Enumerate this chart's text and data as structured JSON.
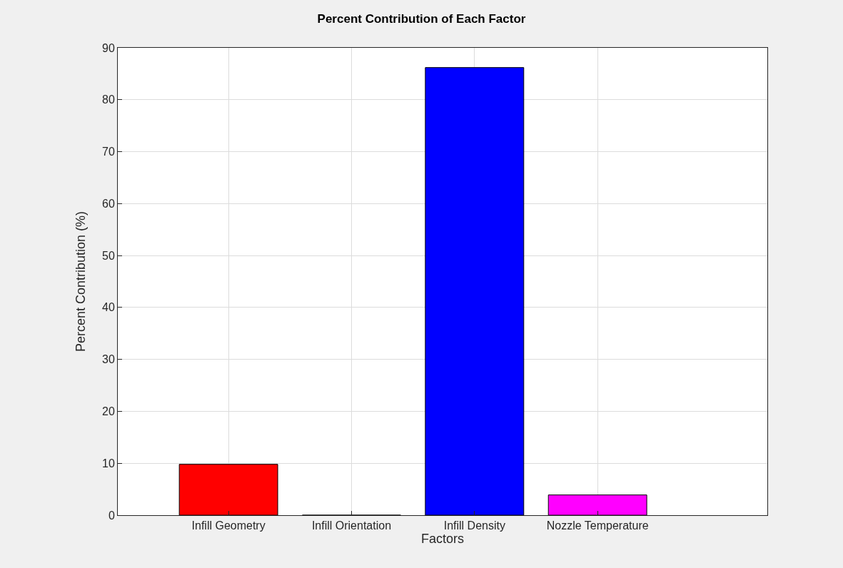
{
  "chart_data": {
    "type": "bar",
    "title": "Percent Contribution of Each Factor",
    "xlabel": "Factors",
    "ylabel": "Percent Contribution (%)",
    "categories": [
      "Infill Geometry",
      "Infill Orientation",
      "Infill Density",
      "Nozzle Temperature"
    ],
    "values": [
      9.8,
      0,
      86.2,
      3.9
    ],
    "colors": [
      "#ff0000",
      null,
      "#0000ff",
      "#ff00ff"
    ],
    "ylim": [
      0,
      90
    ],
    "yticks": [
      0,
      10,
      20,
      30,
      40,
      50,
      60,
      70,
      80,
      90
    ],
    "grid": true
  }
}
